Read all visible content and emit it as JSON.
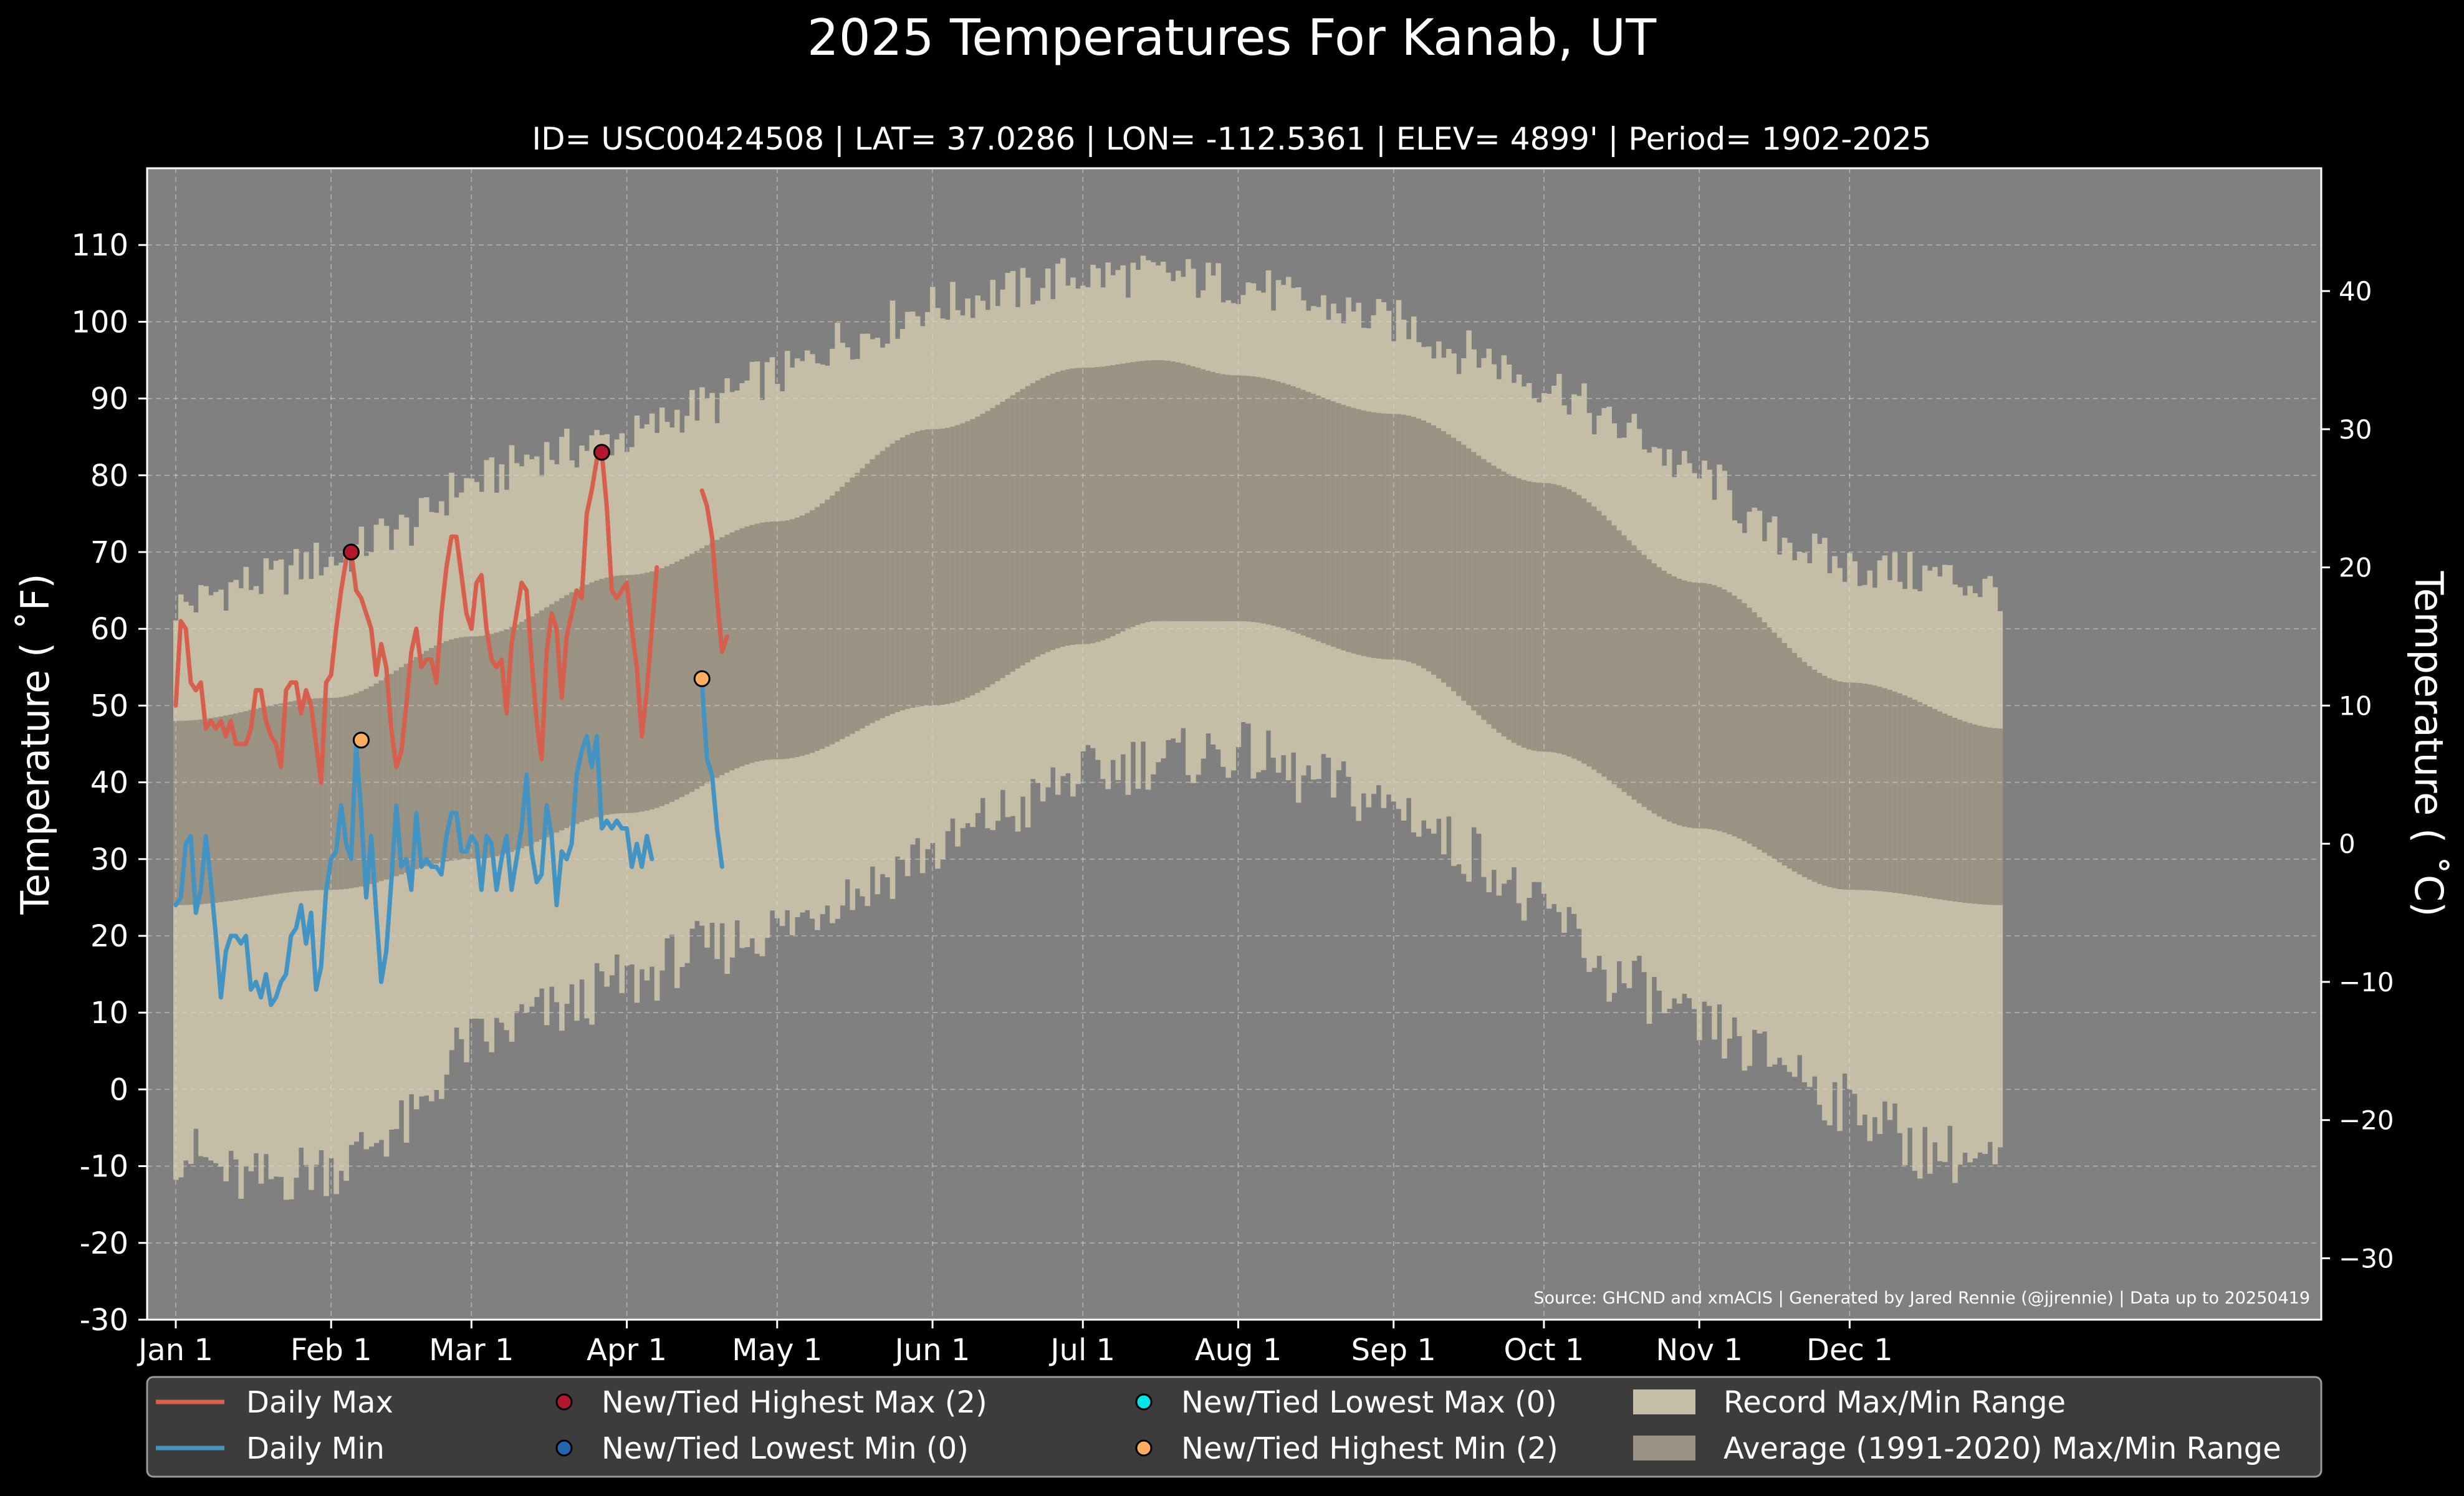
{
  "chart_data": {
    "type": "area",
    "title": "2025 Temperatures For Kanab, UT",
    "subtitle": "ID= USC00424508 | LAT= 37.0286 | LON= -112.5361 | ELEV= 4899' | Period= 1902-2025",
    "ylabel": "Temperature ($^\\circ$F)",
    "ylabel_display": "Temperature ( ˚F)",
    "y2label_display": "Temperature ( ˚C)",
    "source": "Source: GHCND and xmACIS | Generated by Jared Rennie (@jjrennie) | Data up to 20250419",
    "ylim": [
      -30,
      120
    ],
    "xlim_days": [
      0,
      365
    ],
    "grid": true,
    "legend_position": "bottom",
    "y_ticks": [
      "110",
      "100",
      "90",
      "80",
      "70",
      "60",
      "50",
      "40",
      "30",
      "20",
      "10",
      "0",
      "-10",
      "-20",
      "-30"
    ],
    "y2_ticks": [
      "40",
      "30",
      "20",
      "10",
      "0",
      "−10",
      "−20",
      "−30"
    ],
    "x_ticks": [
      "Jan 1",
      "Feb 1",
      "Mar 1",
      "Apr 1",
      "May 1",
      "Jun 1",
      "Jul 1",
      "Aug 1",
      "Sep 1",
      "Oct 1",
      "Nov 1",
      "Dec 1"
    ],
    "x_tick_days": [
      0,
      31,
      59,
      90,
      120,
      151,
      181,
      212,
      243,
      273,
      304,
      334
    ],
    "colors": {
      "background": "#000000",
      "plot_bg": "#808080",
      "record_range": "#c5bda6",
      "normal_range": "#9a9282",
      "daily_max": "#d6604d",
      "daily_min": "#4393c3",
      "new_high_max": "#b2182b",
      "new_low_min": "#2166ac",
      "new_low_max": "#00e5e5",
      "new_high_min": "#fdae61",
      "legend_bg": "#3c3c3c"
    },
    "legend": [
      {
        "label": "Daily Max",
        "kind": "line",
        "color": "#d6604d"
      },
      {
        "label": "Daily Min",
        "kind": "line",
        "color": "#4393c3"
      },
      {
        "label": "New/Tied Highest Max (2)",
        "kind": "dot",
        "color": "#b2182b"
      },
      {
        "label": "New/Tied Lowest Min (0)",
        "kind": "dot",
        "color": "#2166ac"
      },
      {
        "label": "New/Tied Lowest Max (0)",
        "kind": "dot",
        "color": "#00e5e5"
      },
      {
        "label": "New/Tied Highest Min (2)",
        "kind": "dot",
        "color": "#fdae61"
      },
      {
        "label": "Record Max/Min Range",
        "kind": "patch",
        "color": "#c5bda6"
      },
      {
        "label": "Average (1991-2020) Max/Min Range",
        "kind": "patch",
        "color": "#9a9282"
      }
    ],
    "record_max_anchors": [
      [
        0,
        63
      ],
      [
        15,
        66
      ],
      [
        31,
        69
      ],
      [
        45,
        73
      ],
      [
        59,
        79
      ],
      [
        75,
        83
      ],
      [
        90,
        85
      ],
      [
        105,
        89
      ],
      [
        120,
        93
      ],
      [
        135,
        98
      ],
      [
        151,
        102
      ],
      [
        166,
        104
      ],
      [
        181,
        106
      ],
      [
        196,
        106
      ],
      [
        212,
        105
      ],
      [
        228,
        102
      ],
      [
        243,
        100
      ],
      [
        258,
        96
      ],
      [
        273,
        92
      ],
      [
        289,
        86
      ],
      [
        304,
        80
      ],
      [
        319,
        72
      ],
      [
        334,
        68
      ],
      [
        350,
        67
      ],
      [
        365,
        65
      ]
    ],
    "record_min_anchors": [
      [
        0,
        -8
      ],
      [
        15,
        -12
      ],
      [
        31,
        -10
      ],
      [
        45,
        -5
      ],
      [
        59,
        6
      ],
      [
        75,
        10
      ],
      [
        90,
        14
      ],
      [
        105,
        18
      ],
      [
        120,
        21
      ],
      [
        135,
        26
      ],
      [
        151,
        31
      ],
      [
        166,
        36
      ],
      [
        181,
        41
      ],
      [
        196,
        43
      ],
      [
        212,
        44
      ],
      [
        228,
        40
      ],
      [
        243,
        37
      ],
      [
        258,
        31
      ],
      [
        273,
        23
      ],
      [
        289,
        14
      ],
      [
        304,
        8
      ],
      [
        319,
        4
      ],
      [
        334,
        -2
      ],
      [
        350,
        -8
      ],
      [
        365,
        -10
      ]
    ],
    "normal_max_anchors": [
      [
        0,
        48
      ],
      [
        31,
        51
      ],
      [
        59,
        59
      ],
      [
        90,
        67
      ],
      [
        120,
        74
      ],
      [
        151,
        86
      ],
      [
        181,
        94
      ],
      [
        196,
        95
      ],
      [
        212,
        93
      ],
      [
        243,
        88
      ],
      [
        273,
        79
      ],
      [
        304,
        66
      ],
      [
        334,
        53
      ],
      [
        365,
        47
      ]
    ],
    "normal_min_anchors": [
      [
        0,
        24
      ],
      [
        31,
        26
      ],
      [
        59,
        30
      ],
      [
        90,
        36
      ],
      [
        120,
        43
      ],
      [
        151,
        50
      ],
      [
        181,
        58
      ],
      [
        196,
        61
      ],
      [
        212,
        61
      ],
      [
        243,
        56
      ],
      [
        273,
        44
      ],
      [
        304,
        34
      ],
      [
        334,
        26
      ],
      [
        365,
        24
      ]
    ],
    "daily_max": [
      [
        [
          0,
          50
        ],
        [
          1,
          61
        ],
        [
          2,
          60
        ],
        [
          3,
          53
        ],
        [
          4,
          52
        ],
        [
          5,
          53
        ],
        [
          6,
          47
        ],
        [
          7,
          48
        ],
        [
          8,
          47
        ],
        [
          9,
          48
        ],
        [
          10,
          46
        ],
        [
          11,
          48
        ],
        [
          12,
          45
        ],
        [
          13,
          45
        ],
        [
          14,
          45
        ],
        [
          15,
          47
        ],
        [
          16,
          52
        ],
        [
          17,
          52
        ],
        [
          18,
          48
        ],
        [
          19,
          46
        ],
        [
          20,
          45
        ],
        [
          21,
          42
        ],
        [
          22,
          52
        ],
        [
          23,
          53
        ],
        [
          24,
          53
        ],
        [
          25,
          49
        ],
        [
          26,
          52
        ],
        [
          27,
          50
        ],
        [
          28,
          45
        ],
        [
          29,
          40
        ],
        [
          30,
          53
        ],
        [
          31,
          54
        ],
        [
          32,
          60
        ],
        [
          33,
          65
        ],
        [
          34,
          69
        ],
        [
          35,
          70
        ],
        [
          36,
          65
        ],
        [
          37,
          64
        ],
        [
          38,
          62
        ],
        [
          39,
          60
        ],
        [
          40,
          54
        ],
        [
          41,
          58
        ],
        [
          42,
          55
        ],
        [
          43,
          47
        ],
        [
          44,
          42
        ],
        [
          45,
          44
        ],
        [
          46,
          50
        ],
        [
          47,
          57
        ],
        [
          48,
          60
        ],
        [
          49,
          55
        ],
        [
          50,
          56
        ],
        [
          51,
          56
        ],
        [
          52,
          53
        ],
        [
          53,
          62
        ],
        [
          54,
          68
        ],
        [
          55,
          72
        ],
        [
          56,
          72
        ],
        [
          57,
          67
        ],
        [
          58,
          62
        ],
        [
          59,
          60
        ],
        [
          60,
          66
        ],
        [
          61,
          67
        ],
        [
          62,
          60
        ],
        [
          63,
          56
        ],
        [
          64,
          55
        ],
        [
          65,
          56
        ],
        [
          66,
          49
        ],
        [
          67,
          58
        ],
        [
          68,
          62
        ],
        [
          69,
          66
        ],
        [
          70,
          65
        ],
        [
          71,
          56
        ],
        [
          72,
          48
        ],
        [
          73,
          43
        ],
        [
          74,
          57
        ],
        [
          75,
          62
        ],
        [
          76,
          60
        ],
        [
          77,
          51
        ],
        [
          78,
          59
        ],
        [
          79,
          62
        ],
        [
          80,
          65
        ],
        [
          81,
          64
        ],
        [
          82,
          75
        ],
        [
          83,
          78
        ],
        [
          84,
          82
        ],
        [
          85,
          83
        ],
        [
          86,
          76
        ],
        [
          87,
          65
        ],
        [
          88,
          64
        ],
        [
          89,
          65
        ],
        [
          90,
          66
        ],
        [
          91,
          60
        ],
        [
          92,
          55
        ],
        [
          93,
          46
        ],
        [
          94,
          52
        ],
        [
          95,
          60
        ],
        [
          96,
          68
        ]
      ],
      [
        [
          105,
          78
        ],
        [
          106,
          76
        ],
        [
          107,
          72
        ],
        [
          108,
          64
        ],
        [
          109,
          57
        ],
        [
          110,
          59
        ]
      ]
    ],
    "daily_min": [
      [
        [
          0,
          24
        ],
        [
          1,
          25
        ],
        [
          2,
          32
        ],
        [
          3,
          33
        ],
        [
          4,
          23
        ],
        [
          5,
          26
        ],
        [
          6,
          33
        ],
        [
          7,
          27
        ],
        [
          8,
          20
        ],
        [
          9,
          12
        ],
        [
          10,
          18
        ],
        [
          11,
          20
        ],
        [
          12,
          20
        ],
        [
          13,
          19
        ],
        [
          14,
          20
        ],
        [
          15,
          13
        ],
        [
          16,
          14
        ],
        [
          17,
          12
        ],
        [
          18,
          15
        ],
        [
          19,
          11
        ],
        [
          20,
          12
        ],
        [
          21,
          14
        ],
        [
          22,
          15
        ],
        [
          23,
          20
        ],
        [
          24,
          21
        ],
        [
          25,
          24
        ],
        [
          26,
          19
        ],
        [
          27,
          23
        ],
        [
          28,
          13
        ],
        [
          29,
          16
        ],
        [
          30,
          26
        ],
        [
          31,
          30
        ],
        [
          32,
          31
        ],
        [
          33,
          37
        ],
        [
          34,
          32
        ],
        [
          35,
          30
        ],
        [
          36,
          45
        ],
        [
          37,
          36
        ],
        [
          38,
          25
        ],
        [
          39,
          33
        ],
        [
          40,
          23
        ],
        [
          41,
          14
        ],
        [
          42,
          18
        ],
        [
          43,
          27
        ],
        [
          44,
          37
        ],
        [
          45,
          29
        ],
        [
          46,
          30
        ],
        [
          47,
          26
        ],
        [
          48,
          36
        ],
        [
          49,
          29
        ],
        [
          50,
          30
        ],
        [
          51,
          29
        ],
        [
          52,
          29
        ],
        [
          53,
          28
        ],
        [
          54,
          33
        ],
        [
          55,
          36
        ],
        [
          56,
          36
        ],
        [
          57,
          31
        ],
        [
          58,
          31
        ],
        [
          59,
          33
        ],
        [
          60,
          32
        ],
        [
          61,
          26
        ],
        [
          62,
          33
        ],
        [
          63,
          32
        ],
        [
          64,
          26
        ],
        [
          65,
          30
        ],
        [
          66,
          33
        ],
        [
          67,
          26
        ],
        [
          68,
          30
        ],
        [
          69,
          34
        ],
        [
          70,
          41
        ],
        [
          71,
          31
        ],
        [
          72,
          27
        ],
        [
          73,
          28
        ],
        [
          74,
          37
        ],
        [
          75,
          33
        ],
        [
          76,
          24
        ],
        [
          77,
          31
        ],
        [
          78,
          30
        ],
        [
          79,
          32
        ],
        [
          80,
          41
        ],
        [
          81,
          44
        ],
        [
          82,
          46
        ],
        [
          83,
          42
        ],
        [
          84,
          46
        ],
        [
          85,
          34
        ],
        [
          86,
          35
        ],
        [
          87,
          34
        ],
        [
          88,
          35
        ],
        [
          89,
          34
        ],
        [
          90,
          34
        ],
        [
          91,
          29
        ],
        [
          92,
          32
        ],
        [
          93,
          29
        ],
        [
          94,
          33
        ],
        [
          95,
          30
        ]
      ],
      [
        [
          105,
          53
        ],
        [
          106,
          43
        ],
        [
          107,
          41
        ],
        [
          108,
          34
        ],
        [
          109,
          29
        ]
      ]
    ],
    "record_high_max_points": [
      [
        35,
        70
      ],
      [
        85,
        83
      ]
    ],
    "record_high_min_points": [
      [
        37,
        45.5
      ],
      [
        105,
        53.5
      ]
    ]
  }
}
